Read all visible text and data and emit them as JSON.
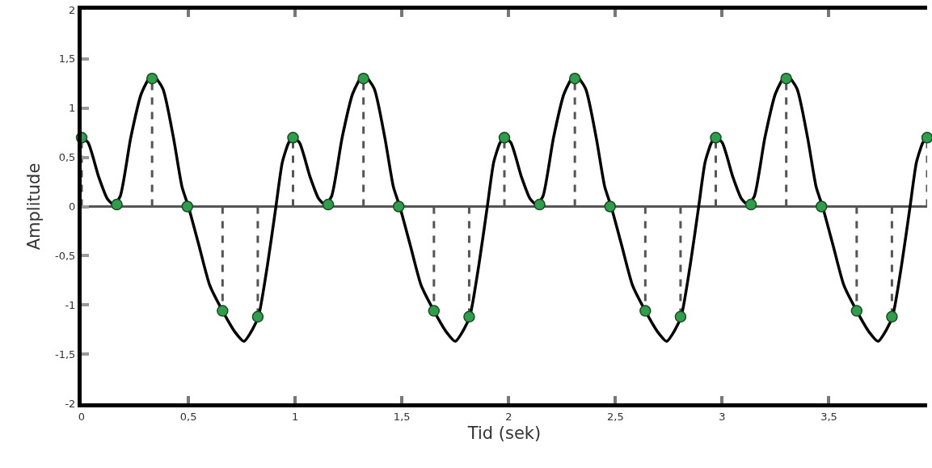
{
  "chart_data": {
    "type": "line",
    "xlabel": "Tid (sek)",
    "ylabel": "Amplitude",
    "xlim": [
      0,
      3.96
    ],
    "ylim": [
      -2,
      2
    ],
    "xticks": [
      0,
      {
        "value": 0.5,
        "label": "0,5"
      },
      1,
      {
        "value": 1.5,
        "label": "1,5"
      },
      2,
      {
        "value": 2.5,
        "label": "2,5"
      },
      3,
      {
        "value": 3.5,
        "label": "3,5"
      }
    ],
    "yticks": [
      -2,
      {
        "value": -1.5,
        "label": "-1,5"
      },
      -1,
      {
        "value": -0.5,
        "label": "-0,5"
      },
      0,
      {
        "value": 0.5,
        "label": "0,5"
      },
      1,
      {
        "value": 1.5,
        "label": "1,5"
      },
      2
    ],
    "grid": false,
    "ref_lines": [
      {
        "axis": "y",
        "value": 0,
        "color": "#555555"
      }
    ],
    "series": [
      {
        "color": "#000000",
        "line_style": "solid",
        "marker": "none",
        "x": [
          0,
          0.03,
          0.08,
          0.12,
          0.15,
          0.18,
          0.23,
          0.28,
          0.33,
          0.38,
          0.43,
          0.47,
          0.5,
          0.55,
          0.6,
          0.66,
          0.72,
          0.76,
          0.8,
          0.83,
          0.87,
          0.91,
          0.94,
          0.97,
          0.99,
          1.02,
          1.07,
          1.11,
          1.14,
          1.17,
          1.22,
          1.27,
          1.32,
          1.37,
          1.42,
          1.46,
          1.49,
          1.54,
          1.59,
          1.65,
          1.71,
          1.75,
          1.79,
          1.82,
          1.86,
          1.9,
          1.93,
          1.96,
          1.98,
          2.01,
          2.06,
          2.1,
          2.13,
          2.16,
          2.21,
          2.26,
          2.31,
          2.36,
          2.41,
          2.45,
          2.48,
          2.53,
          2.58,
          2.64,
          2.7,
          2.74,
          2.78,
          2.81,
          2.85,
          2.89,
          2.92,
          2.95,
          2.97,
          3,
          3.05,
          3.09,
          3.12,
          3.15,
          3.2,
          3.25,
          3.3,
          3.35,
          3.4,
          3.44,
          3.47,
          3.52,
          3.57,
          3.63,
          3.69,
          3.73,
          3.77,
          3.8,
          3.84,
          3.88,
          3.91,
          3.94,
          3.96
        ],
        "values": [
          0.7,
          0.65,
          0.3,
          0.08,
          0.02,
          0.1,
          0.7,
          1.15,
          1.34,
          1.2,
          0.7,
          0.2,
          0,
          -0.4,
          -0.8,
          -1.06,
          -1.28,
          -1.37,
          -1.25,
          -1.1,
          -0.6,
          0,
          0.45,
          0.65,
          0.7,
          0.65,
          0.3,
          0.08,
          0.02,
          0.1,
          0.7,
          1.15,
          1.34,
          1.2,
          0.7,
          0.2,
          0,
          -0.4,
          -0.8,
          -1.06,
          -1.28,
          -1.37,
          -1.25,
          -1.1,
          -0.6,
          0,
          0.45,
          0.65,
          0.7,
          0.65,
          0.3,
          0.08,
          0.02,
          0.1,
          0.7,
          1.15,
          1.34,
          1.2,
          0.7,
          0.2,
          0,
          -0.4,
          -0.8,
          -1.06,
          -1.28,
          -1.37,
          -1.25,
          -1.1,
          -0.6,
          0,
          0.45,
          0.65,
          0.7,
          0.65,
          0.3,
          0.08,
          0.02,
          0.1,
          0.7,
          1.15,
          1.34,
          1.2,
          0.7,
          0.2,
          0,
          -0.4,
          -0.8,
          -1.06,
          -1.28,
          -1.37,
          -1.25,
          -1.1,
          -0.6,
          0,
          0.45,
          0.65,
          0.7
        ]
      },
      {
        "type": "lollipop",
        "color": "#2e9e4a",
        "line_style": "dashed",
        "marker": "circle",
        "x": [
          0,
          0.165,
          0.33,
          0.495,
          0.66,
          0.825,
          0.99,
          1.155,
          1.32,
          1.485,
          1.65,
          1.815,
          1.98,
          2.145,
          2.31,
          2.475,
          2.64,
          2.805,
          2.97,
          3.135,
          3.3,
          3.465,
          3.63,
          3.795,
          3.96
        ],
        "values": [
          0.7,
          0.02,
          1.3,
          0,
          -1.06,
          -1.12,
          0.7,
          0.02,
          1.3,
          0,
          -1.06,
          -1.12,
          0.7,
          0.02,
          1.3,
          0,
          -1.06,
          -1.12,
          0.7,
          0.02,
          1.3,
          0,
          -1.06,
          -1.12,
          0.7
        ]
      }
    ]
  }
}
